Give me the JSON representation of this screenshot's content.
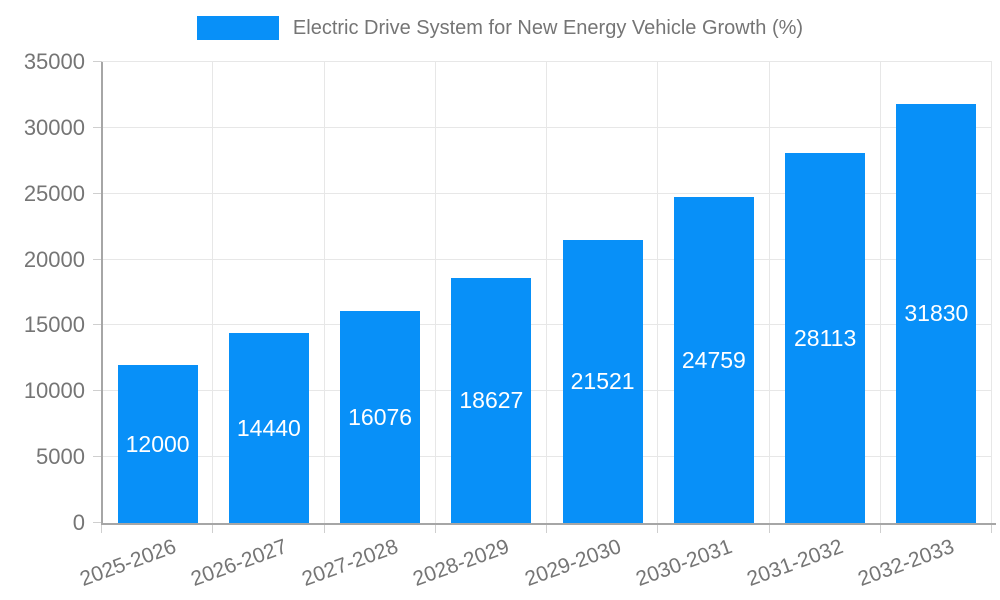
{
  "legend": {
    "label": "Electric Drive System for New Energy Vehicle Growth (%)"
  },
  "chart_data": {
    "type": "bar",
    "title": "Electric Drive System for New Energy Vehicle Growth (%)",
    "categories": [
      "2025-2026",
      "2026-2027",
      "2027-2028",
      "2028-2029",
      "2029-2030",
      "2030-2031",
      "2031-2032",
      "2032-2033"
    ],
    "values": [
      12000,
      14440,
      16076,
      18627,
      21521,
      24759,
      28113,
      31830
    ],
    "series": [
      {
        "name": "Electric Drive System for New Energy Vehicle Growth (%)",
        "values": [
          12000,
          14440,
          16076,
          18627,
          21521,
          24759,
          28113,
          31830
        ]
      }
    ],
    "xlabel": "",
    "ylabel": "",
    "ylim": [
      0,
      35000
    ],
    "y_ticks": [
      0,
      5000,
      10000,
      15000,
      20000,
      25000,
      30000,
      35000
    ],
    "grid": true,
    "legend_position": "top-center",
    "x_tick_rotation_deg": 20,
    "value_labels_inside_bars": true,
    "colors": {
      "bar": "#0890f8",
      "grid": "#e7e7e7",
      "axis": "#a6a6a6",
      "tick": "#cfcfcf",
      "text": "#757575",
      "value_label": "#ffffff",
      "background": "#ffffff"
    }
  }
}
